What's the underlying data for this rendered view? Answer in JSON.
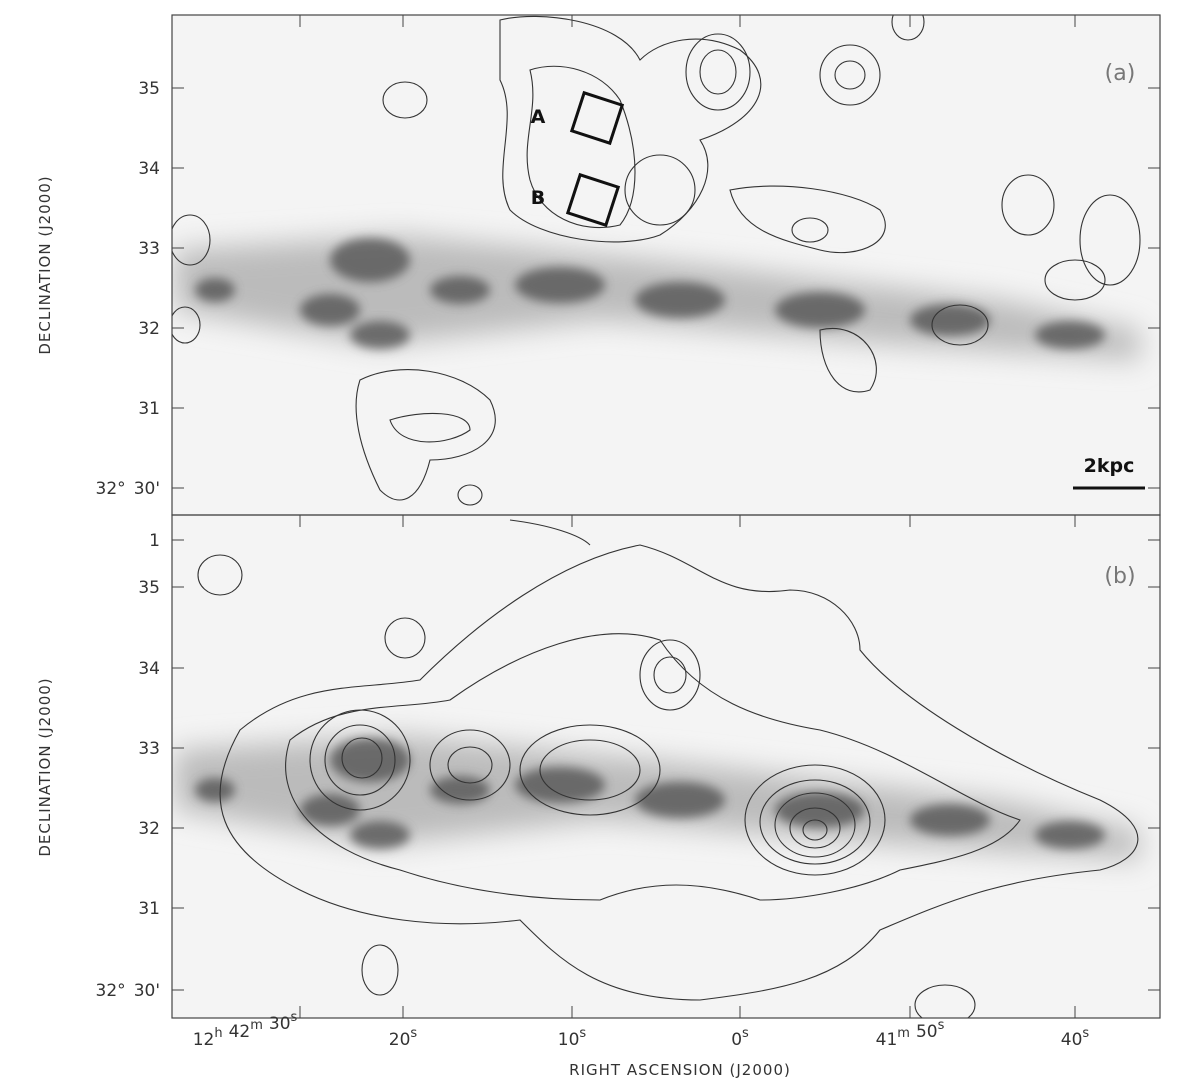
{
  "panels": [
    {
      "label": "(a)",
      "markers": [
        "A",
        "B"
      ],
      "scale_bar": "2kpc",
      "yticks": [
        [
          "35"
        ],
        [
          "34"
        ],
        [
          "33"
        ],
        [
          "32"
        ],
        [
          "31"
        ],
        [
          "32°",
          "30'"
        ]
      ]
    },
    {
      "label": "(b)",
      "yticks": [
        [
          "1"
        ],
        [
          "35"
        ],
        [
          "34"
        ],
        [
          "33"
        ],
        [
          "32"
        ],
        [
          "31"
        ],
        [
          "32°",
          "30'"
        ]
      ]
    }
  ],
  "y_axis_label": "DECLINATION (J2000)",
  "x_axis_label": "RIGHT ASCENSION (J2000)",
  "xticks": [
    [
      [
        "12",
        "h"
      ],
      [
        "42",
        "m"
      ],
      [
        "30",
        "s"
      ]
    ],
    [
      [
        "20",
        "s"
      ]
    ],
    [
      [
        "10",
        "s"
      ]
    ],
    [
      [
        "0",
        "s"
      ]
    ],
    [
      [
        "41",
        "m"
      ],
      [
        "50",
        "s"
      ]
    ],
    [
      [
        "40",
        "s"
      ]
    ]
  ]
}
